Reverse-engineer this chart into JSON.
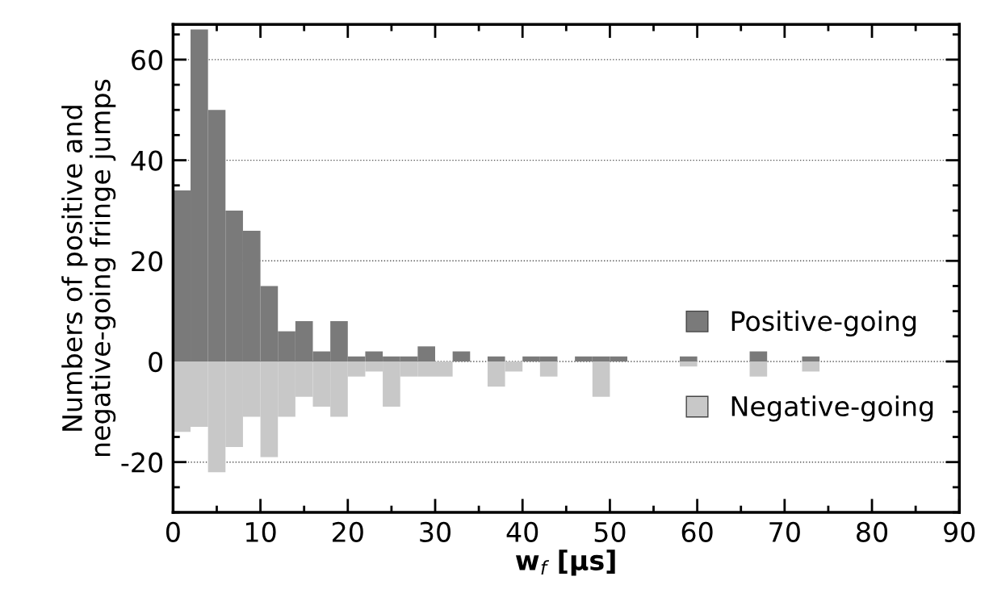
{
  "chart_data": {
    "type": "histogram",
    "xlabel": "w$_{f}$ [μs]",
    "ylabel": "Numbers of positive and\nnegative-going fringe jumps",
    "bins": [
      0,
      2,
      4,
      6,
      8,
      10,
      12,
      14,
      16,
      18,
      20,
      22,
      24,
      26,
      28,
      30,
      32,
      34,
      36,
      38,
      40,
      42,
      44,
      46,
      48,
      50,
      52,
      54,
      56,
      58,
      60,
      62,
      64,
      66,
      68,
      70,
      72,
      74,
      76,
      78,
      80,
      82,
      84,
      86,
      88,
      90
    ],
    "series": [
      {
        "name": "Positive-going",
        "color": "#7a7a7a",
        "values": [
          34,
          66,
          50,
          30,
          26,
          15,
          6,
          8,
          2,
          8,
          1,
          2,
          1,
          1,
          3,
          0,
          2,
          0,
          1,
          0,
          1,
          1,
          0,
          1,
          1,
          1,
          0,
          0,
          0,
          1,
          0,
          0,
          0,
          2,
          0,
          0,
          1,
          0,
          0,
          0,
          0,
          0,
          0,
          0,
          0
        ]
      },
      {
        "name": "Negative-going",
        "color": "#c8c8c8",
        "values": [
          -14,
          -13,
          -22,
          -17,
          -11,
          -19,
          -11,
          -7,
          -9,
          -11,
          -3,
          -2,
          -9,
          -3,
          -3,
          -3,
          0,
          0,
          -5,
          -2,
          0,
          -3,
          0,
          0,
          -7,
          0,
          0,
          0,
          0,
          -1,
          0,
          0,
          0,
          -3,
          0,
          0,
          -2,
          0,
          0,
          0,
          0,
          0,
          0,
          0,
          0
        ]
      }
    ],
    "xlim": [
      0,
      90
    ],
    "ylim": [
      -30,
      67
    ],
    "xticks": [
      0,
      10,
      20,
      30,
      40,
      50,
      60,
      70,
      80,
      90
    ],
    "yticks": [
      -20,
      0,
      20,
      40,
      60
    ],
    "grid": "y",
    "legend": "right"
  }
}
